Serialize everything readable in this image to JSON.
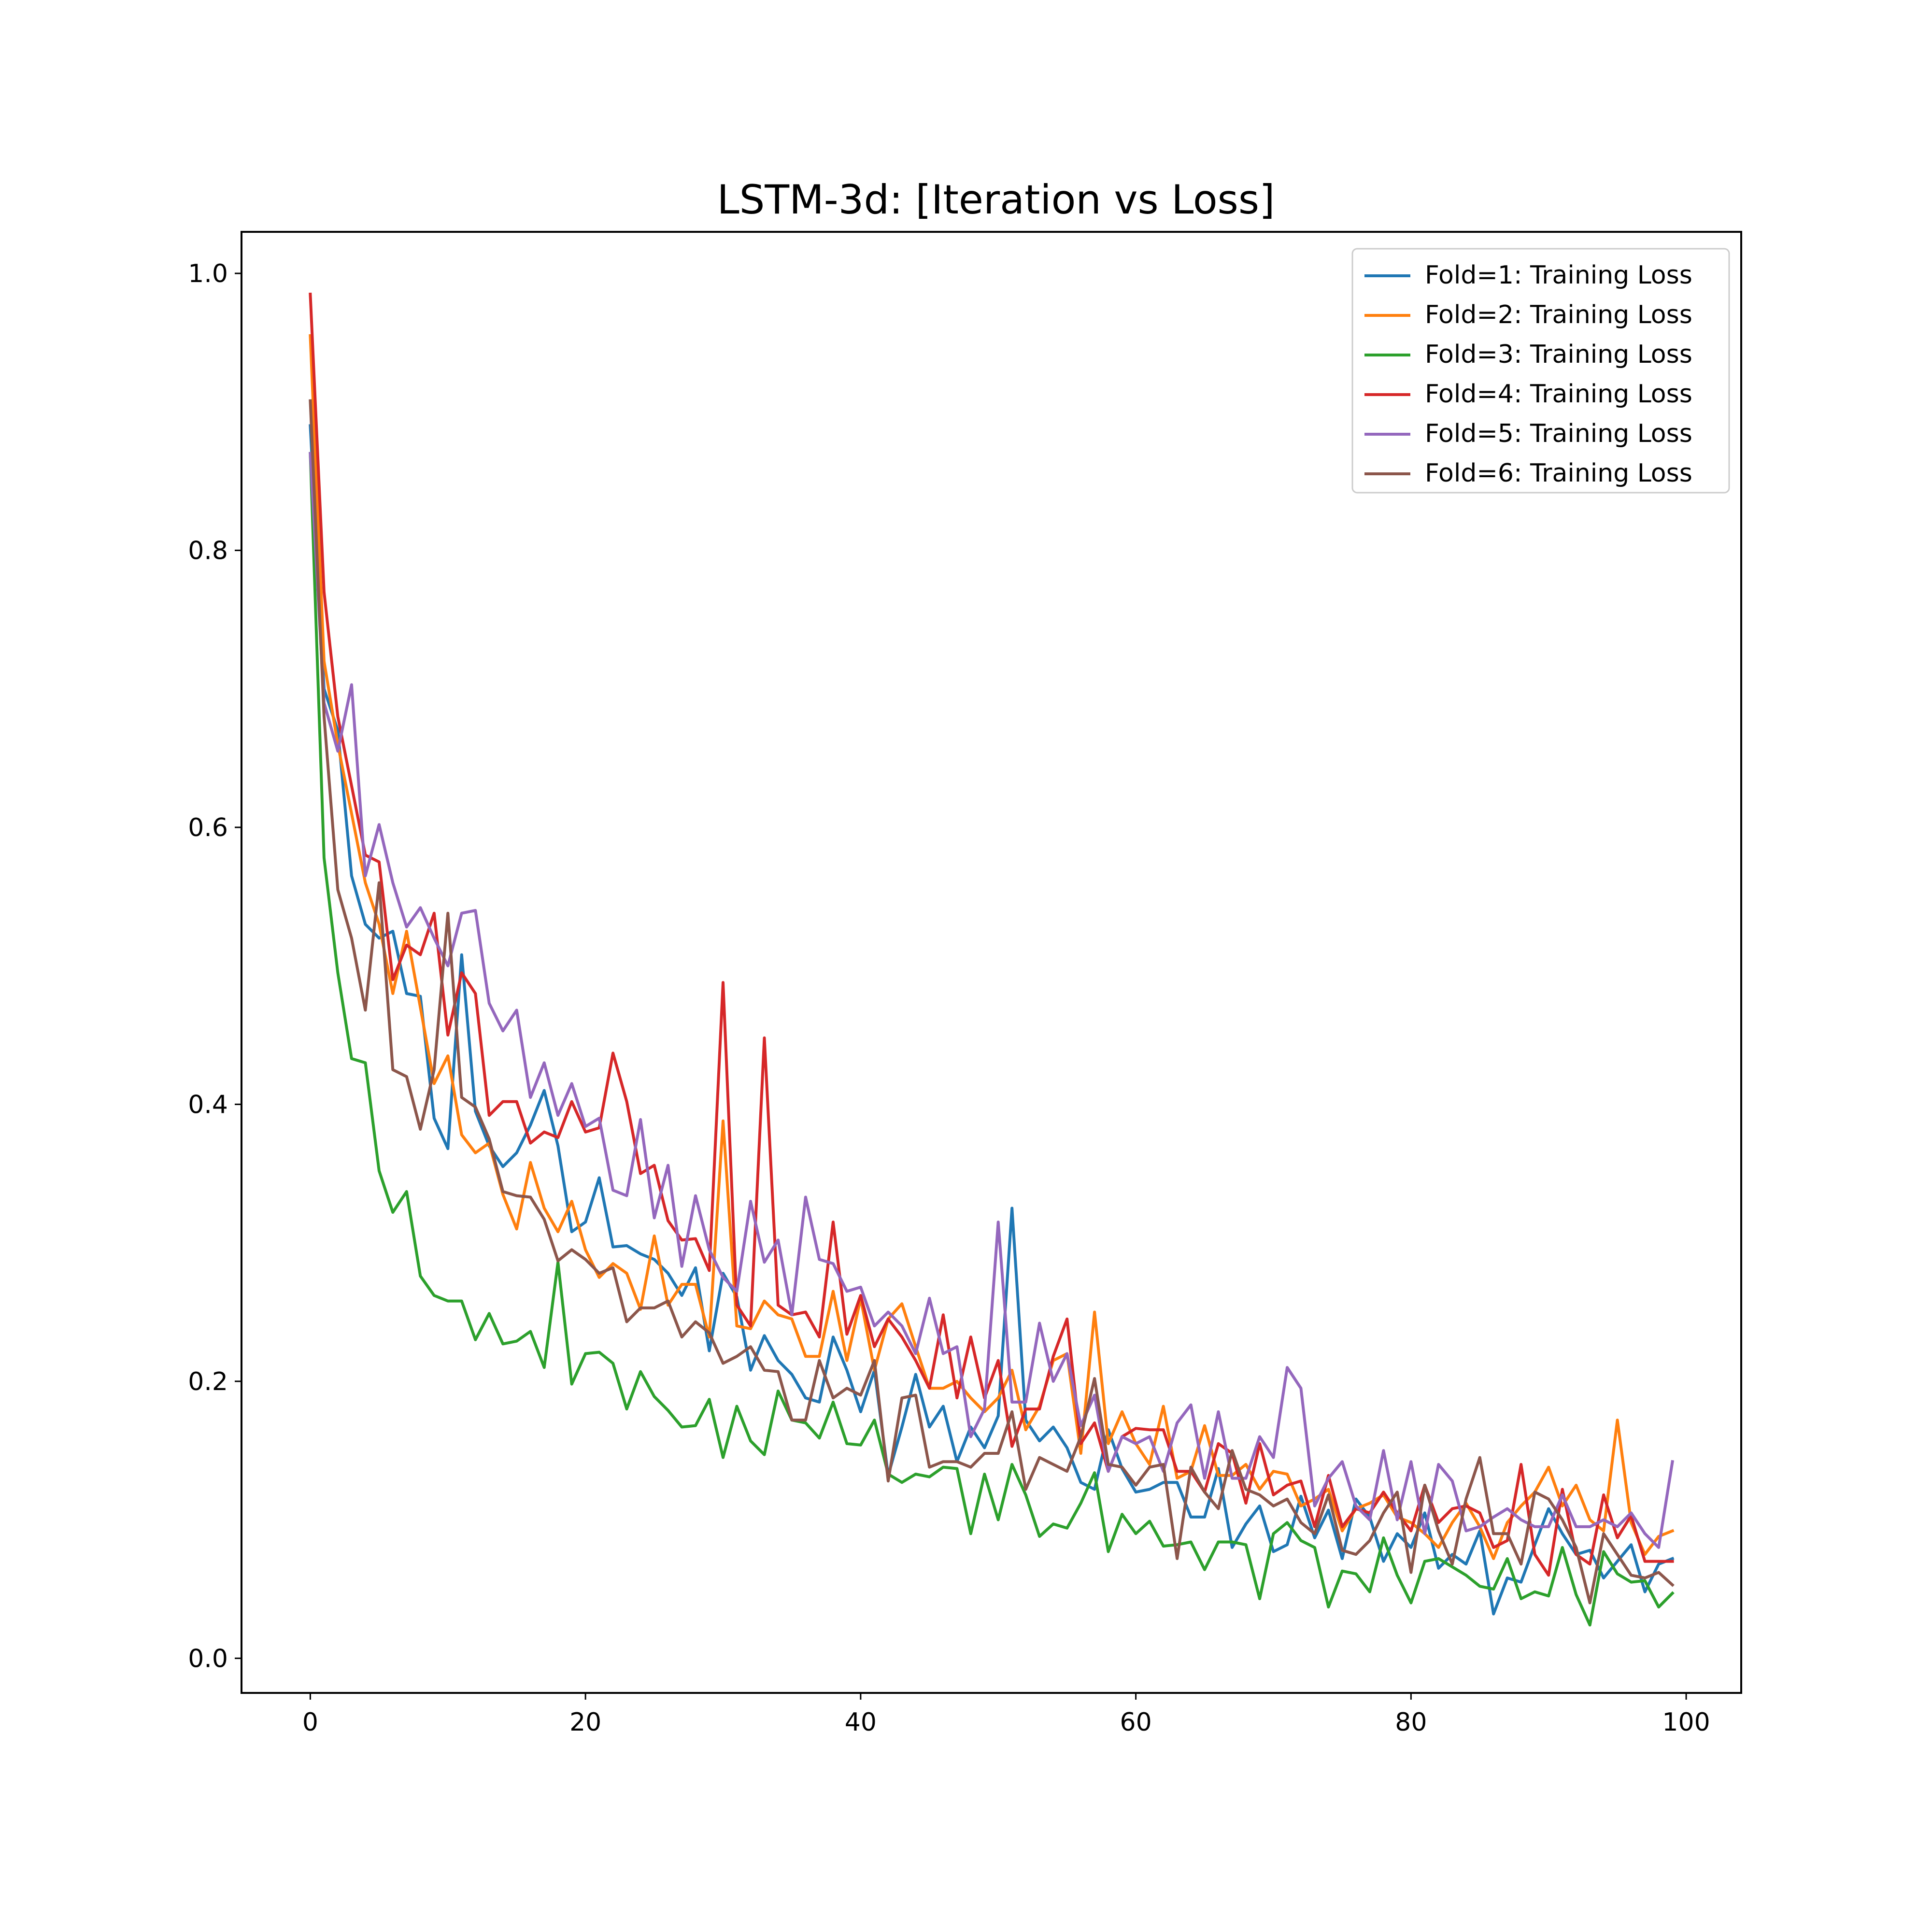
{
  "chart_data": {
    "type": "line",
    "title": "LSTM-3d: [Iteration vs Loss]",
    "xlabel": "",
    "ylabel": "",
    "xlim": [
      -5,
      104
    ],
    "ylim": [
      -0.025,
      1.03
    ],
    "x_ticks": [
      0,
      20,
      40,
      60,
      80,
      100
    ],
    "y_ticks": [
      0.0,
      0.2,
      0.4,
      0.6,
      0.8,
      1.0
    ],
    "x_tick_labels": [
      "0",
      "20",
      "40",
      "60",
      "80",
      "100"
    ],
    "y_tick_labels": [
      "0.0",
      "0.2",
      "0.4",
      "0.6",
      "0.8",
      "1.0"
    ],
    "grid": false,
    "legend_position": "top-right",
    "x": [
      0,
      1,
      2,
      3,
      4,
      5,
      6,
      7,
      8,
      9,
      10,
      11,
      12,
      13,
      14,
      15,
      16,
      17,
      18,
      19,
      20,
      21,
      22,
      23,
      24,
      25,
      26,
      27,
      28,
      29,
      30,
      31,
      32,
      33,
      34,
      35,
      36,
      37,
      38,
      39,
      40,
      41,
      42,
      43,
      44,
      45,
      46,
      47,
      48,
      49,
      50,
      51,
      52,
      53,
      54,
      55,
      56,
      57,
      58,
      59,
      60,
      61,
      62,
      63,
      64,
      65,
      66,
      67,
      68,
      69,
      70,
      71,
      72,
      73,
      74,
      75,
      76,
      77,
      78,
      79,
      80,
      81,
      82,
      83,
      84,
      85,
      86,
      87,
      88,
      89,
      90,
      91,
      92,
      93,
      94,
      95,
      96,
      97,
      98,
      99
    ],
    "series": [
      {
        "name": "Fold=1: Training Loss",
        "color": "#1f77b4",
        "values": [
          0.89,
          0.7,
          0.67,
          0.565,
          0.53,
          0.52,
          0.525,
          0.48,
          0.478,
          0.39,
          0.368,
          0.508,
          0.395,
          0.37,
          0.355,
          0.365,
          0.385,
          0.41,
          0.37,
          0.308,
          0.315,
          0.347,
          0.297,
          0.298,
          0.292,
          0.288,
          0.278,
          0.262,
          0.282,
          0.222,
          0.278,
          0.261,
          0.208,
          0.233,
          0.215,
          0.205,
          0.188,
          0.185,
          0.232,
          0.208,
          0.178,
          0.208,
          0.132,
          0.167,
          0.205,
          0.167,
          0.182,
          0.142,
          0.167,
          0.152,
          0.175,
          0.325,
          0.172,
          0.157,
          0.167,
          0.152,
          0.127,
          0.122,
          0.165,
          0.137,
          0.12,
          0.122,
          0.127,
          0.127,
          0.102,
          0.102,
          0.137,
          0.08,
          0.097,
          0.11,
          0.077,
          0.082,
          0.117,
          0.087,
          0.107,
          0.072,
          0.115,
          0.102,
          0.07,
          0.09,
          0.08,
          0.105,
          0.065,
          0.075,
          0.068,
          0.092,
          0.032,
          0.058,
          0.055,
          0.082,
          0.108,
          0.09,
          0.075,
          0.078,
          0.058,
          0.07,
          0.082,
          0.048,
          0.068,
          0.072
        ]
      },
      {
        "name": "Fold=2: Training Loss",
        "color": "#ff7f0e",
        "values": [
          0.955,
          0.72,
          0.66,
          0.61,
          0.56,
          0.53,
          0.48,
          0.525,
          0.47,
          0.415,
          0.435,
          0.378,
          0.365,
          0.372,
          0.335,
          0.31,
          0.358,
          0.325,
          0.308,
          0.33,
          0.295,
          0.275,
          0.285,
          0.278,
          0.252,
          0.305,
          0.255,
          0.27,
          0.27,
          0.232,
          0.388,
          0.24,
          0.238,
          0.258,
          0.248,
          0.245,
          0.218,
          0.218,
          0.265,
          0.215,
          0.26,
          0.208,
          0.245,
          0.256,
          0.225,
          0.195,
          0.195,
          0.2,
          0.188,
          0.178,
          0.188,
          0.208,
          0.165,
          0.182,
          0.215,
          0.22,
          0.148,
          0.25,
          0.155,
          0.178,
          0.155,
          0.14,
          0.182,
          0.13,
          0.135,
          0.168,
          0.132,
          0.132,
          0.14,
          0.122,
          0.135,
          0.133,
          0.11,
          0.115,
          0.122,
          0.092,
          0.108,
          0.112,
          0.118,
          0.102,
          0.098,
          0.09,
          0.08,
          0.098,
          0.112,
          0.095,
          0.072,
          0.098,
          0.11,
          0.12,
          0.138,
          0.11,
          0.125,
          0.1,
          0.092,
          0.172,
          0.098,
          0.075,
          0.088,
          0.092
        ]
      },
      {
        "name": "Fold=3: Training Loss",
        "color": "#2ca02c",
        "values": [
          0.87,
          0.578,
          0.495,
          0.433,
          0.43,
          0.352,
          0.322,
          0.337,
          0.276,
          0.262,
          0.258,
          0.258,
          0.23,
          0.249,
          0.227,
          0.229,
          0.236,
          0.21,
          0.286,
          0.198,
          0.22,
          0.221,
          0.213,
          0.18,
          0.207,
          0.189,
          0.179,
          0.167,
          0.168,
          0.187,
          0.145,
          0.182,
          0.157,
          0.147,
          0.193,
          0.172,
          0.17,
          0.159,
          0.185,
          0.155,
          0.154,
          0.172,
          0.133,
          0.127,
          0.133,
          0.131,
          0.138,
          0.137,
          0.09,
          0.133,
          0.1,
          0.14,
          0.118,
          0.088,
          0.097,
          0.094,
          0.112,
          0.134,
          0.077,
          0.104,
          0.09,
          0.099,
          0.081,
          0.082,
          0.084,
          0.064,
          0.084,
          0.084,
          0.082,
          0.043,
          0.09,
          0.098,
          0.085,
          0.08,
          0.037,
          0.063,
          0.061,
          0.048,
          0.087,
          0.06,
          0.04,
          0.07,
          0.072,
          0.066,
          0.06,
          0.052,
          0.05,
          0.072,
          0.043,
          0.048,
          0.045,
          0.08,
          0.046,
          0.024,
          0.077,
          0.061,
          0.055,
          0.056,
          0.037,
          0.047
        ]
      },
      {
        "name": "Fold=4: Training Loss",
        "color": "#d62728",
        "values": [
          0.985,
          0.77,
          0.68,
          0.63,
          0.58,
          0.575,
          0.49,
          0.515,
          0.508,
          0.538,
          0.45,
          0.495,
          0.48,
          0.392,
          0.402,
          0.402,
          0.372,
          0.38,
          0.376,
          0.402,
          0.38,
          0.383,
          0.437,
          0.402,
          0.35,
          0.356,
          0.316,
          0.302,
          0.303,
          0.28,
          0.488,
          0.255,
          0.24,
          0.448,
          0.255,
          0.248,
          0.25,
          0.232,
          0.315,
          0.234,
          0.262,
          0.225,
          0.245,
          0.232,
          0.215,
          0.195,
          0.248,
          0.188,
          0.232,
          0.188,
          0.215,
          0.153,
          0.18,
          0.18,
          0.218,
          0.245,
          0.155,
          0.17,
          0.135,
          0.16,
          0.166,
          0.165,
          0.165,
          0.135,
          0.135,
          0.12,
          0.155,
          0.148,
          0.112,
          0.155,
          0.118,
          0.125,
          0.128,
          0.095,
          0.132,
          0.095,
          0.108,
          0.105,
          0.12,
          0.105,
          0.092,
          0.125,
          0.098,
          0.108,
          0.11,
          0.105,
          0.08,
          0.085,
          0.14,
          0.075,
          0.06,
          0.122,
          0.075,
          0.068,
          0.118,
          0.087,
          0.103,
          0.07,
          0.07,
          0.07
        ]
      },
      {
        "name": "Fold=5: Training Loss",
        "color": "#9467bd",
        "values": [
          0.87,
          0.69,
          0.655,
          0.703,
          0.565,
          0.602,
          0.56,
          0.528,
          0.542,
          0.52,
          0.5,
          0.538,
          0.54,
          0.473,
          0.453,
          0.468,
          0.405,
          0.43,
          0.392,
          0.415,
          0.384,
          0.39,
          0.338,
          0.334,
          0.389,
          0.318,
          0.356,
          0.283,
          0.334,
          0.295,
          0.275,
          0.265,
          0.33,
          0.286,
          0.302,
          0.248,
          0.333,
          0.288,
          0.285,
          0.265,
          0.268,
          0.24,
          0.25,
          0.24,
          0.22,
          0.26,
          0.22,
          0.225,
          0.16,
          0.18,
          0.315,
          0.185,
          0.185,
          0.242,
          0.2,
          0.22,
          0.168,
          0.19,
          0.135,
          0.16,
          0.155,
          0.16,
          0.135,
          0.17,
          0.183,
          0.13,
          0.178,
          0.13,
          0.13,
          0.16,
          0.145,
          0.21,
          0.195,
          0.11,
          0.13,
          0.142,
          0.11,
          0.1,
          0.15,
          0.1,
          0.142,
          0.09,
          0.14,
          0.128,
          0.092,
          0.095,
          0.102,
          0.108,
          0.1,
          0.095,
          0.095,
          0.118,
          0.095,
          0.095,
          0.1,
          0.095,
          0.105,
          0.09,
          0.08,
          0.142
        ]
      },
      {
        "name": "Fold=6: Training Loss",
        "color": "#8c564b",
        "values": [
          0.908,
          0.68,
          0.555,
          0.52,
          0.468,
          0.56,
          0.425,
          0.42,
          0.382,
          0.425,
          0.538,
          0.405,
          0.398,
          0.375,
          0.337,
          0.334,
          0.333,
          0.317,
          0.287,
          0.295,
          0.288,
          0.278,
          0.282,
          0.243,
          0.253,
          0.253,
          0.258,
          0.232,
          0.243,
          0.235,
          0.213,
          0.218,
          0.225,
          0.208,
          0.207,
          0.172,
          0.172,
          0.215,
          0.188,
          0.195,
          0.19,
          0.215,
          0.128,
          0.188,
          0.19,
          0.138,
          0.142,
          0.142,
          0.138,
          0.148,
          0.148,
          0.178,
          0.122,
          0.145,
          0.14,
          0.135,
          0.16,
          0.202,
          0.14,
          0.138,
          0.125,
          0.138,
          0.14,
          0.072,
          0.138,
          0.12,
          0.108,
          0.15,
          0.122,
          0.118,
          0.11,
          0.115,
          0.098,
          0.09,
          0.118,
          0.078,
          0.075,
          0.085,
          0.105,
          0.12,
          0.062,
          0.125,
          0.092,
          0.068,
          0.115,
          0.145,
          0.09,
          0.09,
          0.068,
          0.12,
          0.115,
          0.1,
          0.08,
          0.04,
          0.09,
          0.075,
          0.06,
          0.058,
          0.062,
          0.053
        ]
      }
    ]
  }
}
